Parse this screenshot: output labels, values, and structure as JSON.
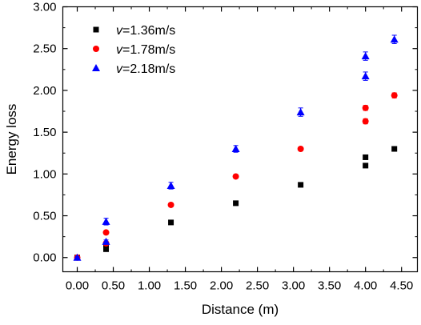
{
  "chart_data": {
    "type": "scatter",
    "title": "",
    "xlabel": "Distance (m)",
    "ylabel": "Energy loss",
    "xlim": [
      -0.2,
      4.72
    ],
    "ylim": [
      -0.17,
      3.0
    ],
    "xticks": [
      "0.00",
      "0.50",
      "1.00",
      "1.50",
      "2.00",
      "2.50",
      "3.00",
      "3.50",
      "4.00",
      "4.50"
    ],
    "yticks": [
      "0.00",
      "0.50",
      "1.00",
      "1.50",
      "2.00",
      "2.50",
      "3.00"
    ],
    "grid": false,
    "legend_position": "top-left",
    "series": [
      {
        "name": "v=1.36m/s",
        "legend_var": "v",
        "legend_rest": "=1.36m/s",
        "marker": "square",
        "color": "#000000",
        "x": [
          0.0,
          0.4,
          0.4,
          1.3,
          2.2,
          3.1,
          4.0,
          4.0,
          4.4
        ],
        "y": [
          0.0,
          0.1,
          0.15,
          0.42,
          0.65,
          0.87,
          1.1,
          1.2,
          1.3
        ],
        "err": [
          0.01,
          0.02,
          0.02,
          0.02,
          0.02,
          0.02,
          0.02,
          0.02,
          0.02
        ]
      },
      {
        "name": "v=1.78m/s",
        "legend_var": "v",
        "legend_rest": "=1.78m/s",
        "marker": "circle",
        "color": "#ff0000",
        "x": [
          0.0,
          0.4,
          0.4,
          1.3,
          2.2,
          3.1,
          4.0,
          4.0,
          4.4
        ],
        "y": [
          0.0,
          0.17,
          0.3,
          0.63,
          0.97,
          1.3,
          1.63,
          1.79,
          1.94
        ],
        "err": [
          0.01,
          0.02,
          0.02,
          0.02,
          0.02,
          0.02,
          0.03,
          0.03,
          0.03
        ]
      },
      {
        "name": "v=2.18m/s",
        "legend_var": "v",
        "legend_rest": "=2.18m/s",
        "marker": "triangle",
        "color": "#0000ff",
        "x": [
          0.0,
          0.4,
          0.4,
          1.3,
          2.2,
          3.1,
          4.0,
          4.0,
          4.4
        ],
        "y": [
          0.0,
          0.19,
          0.43,
          0.86,
          1.3,
          1.74,
          2.17,
          2.41,
          2.61
        ],
        "err": [
          0.01,
          0.02,
          0.04,
          0.04,
          0.04,
          0.05,
          0.05,
          0.05,
          0.05
        ]
      }
    ]
  }
}
